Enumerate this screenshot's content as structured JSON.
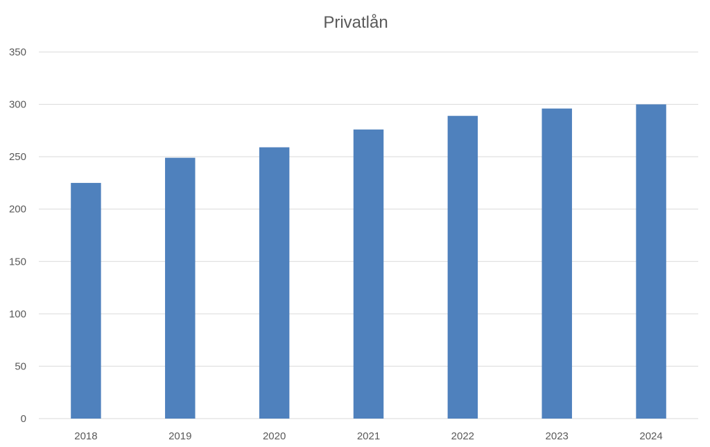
{
  "chart_data": {
    "type": "bar",
    "title": "Privatlån",
    "xlabel": "",
    "ylabel": "",
    "categories": [
      "2018",
      "2019",
      "2020",
      "2021",
      "2022",
      "2023",
      "2024"
    ],
    "series": [
      {
        "values": [
          225,
          249,
          259,
          276,
          289,
          296,
          300
        ]
      }
    ],
    "ylim": [
      0,
      350
    ],
    "yticks": [
      0,
      50,
      100,
      150,
      200,
      250,
      300,
      350
    ],
    "grid": true,
    "legend": "none",
    "colors": {
      "bar": "#4f81bd"
    }
  }
}
